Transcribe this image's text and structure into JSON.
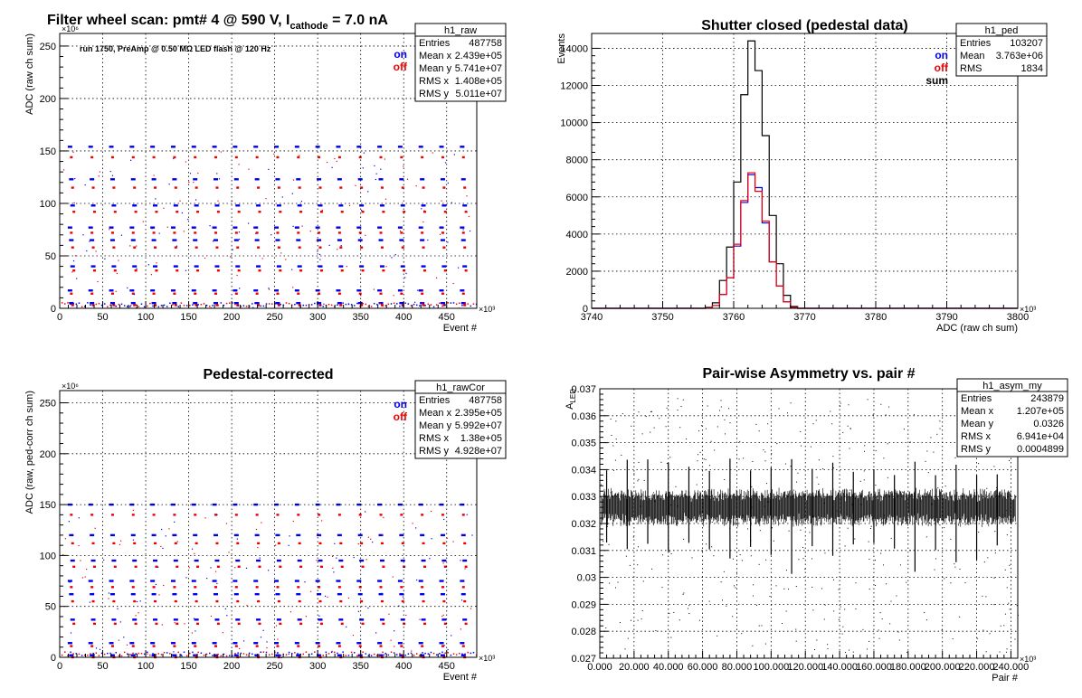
{
  "chart_data": [
    {
      "id": "raw",
      "type": "scatter",
      "title": "Filter wheel scan: pmt#   4 @   590 V, I",
      "title_sub": "cathode",
      "title_tail": " = 7.0 nA",
      "xlabel": "Event #",
      "ylabel": "ADC (raw ch sum)",
      "x_multiplier": "×10³",
      "y_multiplier": "×10⁶",
      "xlim": [
        0,
        485
      ],
      "ylim": [
        0,
        262
      ],
      "x_ticks": [
        0,
        50,
        100,
        150,
        200,
        250,
        300,
        350,
        400,
        450
      ],
      "y_ticks": [
        0,
        50,
        100,
        150,
        200,
        250
      ],
      "grid": true,
      "annotation": "run 1750, PreAmp @ 0.50 MΩ  LED flash @  120 Hz",
      "legend": [
        {
          "label": "on",
          "color": "#0000ee"
        },
        {
          "label": "off",
          "color": "#ee0000"
        }
      ],
      "stats": {
        "name": "h1_raw",
        "rows": [
          {
            "label": "Entries",
            "value": "487758"
          },
          {
            "label": "Mean x",
            "value": "2.439e+05"
          },
          {
            "label": "Mean y",
            "value": "5.741e+07"
          },
          {
            "label": "RMS x",
            "value": "1.408e+05"
          },
          {
            "label": "RMS y",
            "value": "5.011e+07"
          }
        ]
      },
      "pattern": {
        "period": 24,
        "start": 12,
        "levels_on": [
          154,
          123,
          98,
          77,
          65,
          40,
          17,
          5
        ],
        "levels_off": [
          144,
          115,
          92,
          72,
          58,
          36,
          14,
          3
        ]
      }
    },
    {
      "id": "ped",
      "type": "histogram",
      "title": "Shutter closed (pedestal data)",
      "xlabel": "ADC (raw ch sum)",
      "ylabel": "Events",
      "x_multiplier": "×10³",
      "xlim": [
        3740,
        3800
      ],
      "ylim": [
        0,
        14800
      ],
      "x_ticks": [
        3740,
        3750,
        3760,
        3770,
        3780,
        3790,
        3800
      ],
      "y_ticks": [
        0,
        2000,
        4000,
        6000,
        8000,
        10000,
        12000,
        14000
      ],
      "grid": true,
      "legend": [
        {
          "label": "on",
          "color": "#0000ee"
        },
        {
          "label": "off",
          "color": "#ee0000"
        },
        {
          "label": "sum",
          "color": "#000000"
        }
      ],
      "stats": {
        "name": "h1_ped",
        "rows": [
          {
            "label": "Entries",
            "value": "103207"
          },
          {
            "label": "Mean",
            "value": "3.763e+06"
          },
          {
            "label": "RMS",
            "value": "1834"
          }
        ]
      },
      "bin_edges": [
        3756,
        3757,
        3758,
        3759,
        3760,
        3761,
        3762,
        3763,
        3764,
        3765,
        3766,
        3767,
        3768,
        3769
      ],
      "series": [
        {
          "name": "sum",
          "color": "#000000",
          "values": [
            50,
            300,
            1500,
            3300,
            6800,
            11500,
            14400,
            12800,
            9300,
            5000,
            2400,
            700,
            100
          ]
        },
        {
          "name": "on",
          "color": "#0000ee",
          "values": [
            25,
            150,
            750,
            1650,
            3350,
            5700,
            7200,
            6500,
            4600,
            2500,
            1200,
            350,
            50
          ]
        },
        {
          "name": "off",
          "color": "#ee0000",
          "values": [
            25,
            150,
            750,
            1650,
            3450,
            5800,
            7300,
            6300,
            4700,
            2500,
            1200,
            350,
            50
          ]
        }
      ]
    },
    {
      "id": "rawCor",
      "type": "scatter",
      "title": "Pedestal-corrected",
      "xlabel": "Event #",
      "ylabel": "ADC (raw, ped-corr ch sum)",
      "x_multiplier": "×10³",
      "y_multiplier": "×10⁶",
      "xlim": [
        0,
        485
      ],
      "ylim": [
        0,
        262
      ],
      "x_ticks": [
        0,
        50,
        100,
        150,
        200,
        250,
        300,
        350,
        400,
        450
      ],
      "y_ticks": [
        0,
        50,
        100,
        150,
        200,
        250
      ],
      "grid": true,
      "legend": [
        {
          "label": "on",
          "color": "#0000ee"
        },
        {
          "label": "off",
          "color": "#ee0000"
        }
      ],
      "stats": {
        "name": "h1_rawCor",
        "rows": [
          {
            "label": "Entries",
            "value": "487758"
          },
          {
            "label": "Mean x",
            "value": "2.395e+05"
          },
          {
            "label": "Mean y",
            "value": "5.992e+07"
          },
          {
            "label": "RMS x",
            "value": "1.38e+05"
          },
          {
            "label": "RMS y",
            "value": "4.928e+07"
          }
        ]
      },
      "pattern": {
        "period": 24,
        "start": 12,
        "levels_on": [
          150,
          120,
          95,
          75,
          62,
          37,
          14,
          2
        ],
        "levels_off": [
          140,
          112,
          89,
          69,
          55,
          33,
          11,
          0
        ]
      }
    },
    {
      "id": "asym",
      "type": "scatter",
      "title": "Pair-wise Asymmetry vs. pair #",
      "xlabel": "Pair #",
      "ylabel": "A",
      "ylabel_sub": "LED",
      "x_multiplier": "×10³",
      "xlim": [
        0,
        244
      ],
      "ylim": [
        0.027,
        0.037
      ],
      "x_ticks": [
        0,
        20,
        40,
        60,
        80,
        100,
        120,
        140,
        160,
        180,
        200,
        220,
        240
      ],
      "y_ticks": [
        0.027,
        0.028,
        0.029,
        0.03,
        0.031,
        0.032,
        0.033,
        0.034,
        0.035,
        0.036,
        0.037
      ],
      "grid": true,
      "stats": {
        "name": "h1_asym_my",
        "rows": [
          {
            "label": "Entries",
            "value": "243879"
          },
          {
            "label": "Mean x",
            "value": "1.207e+05"
          },
          {
            "label": "Mean y",
            "value": "0.0326"
          },
          {
            "label": "RMS x",
            "value": "6.941e+04"
          },
          {
            "label": "RMS y",
            "value": "0.0004899"
          }
        ]
      },
      "band": {
        "center": 0.0326,
        "halfwidth": 0.0005,
        "spike_period": 12,
        "spike_start": 4
      }
    }
  ]
}
